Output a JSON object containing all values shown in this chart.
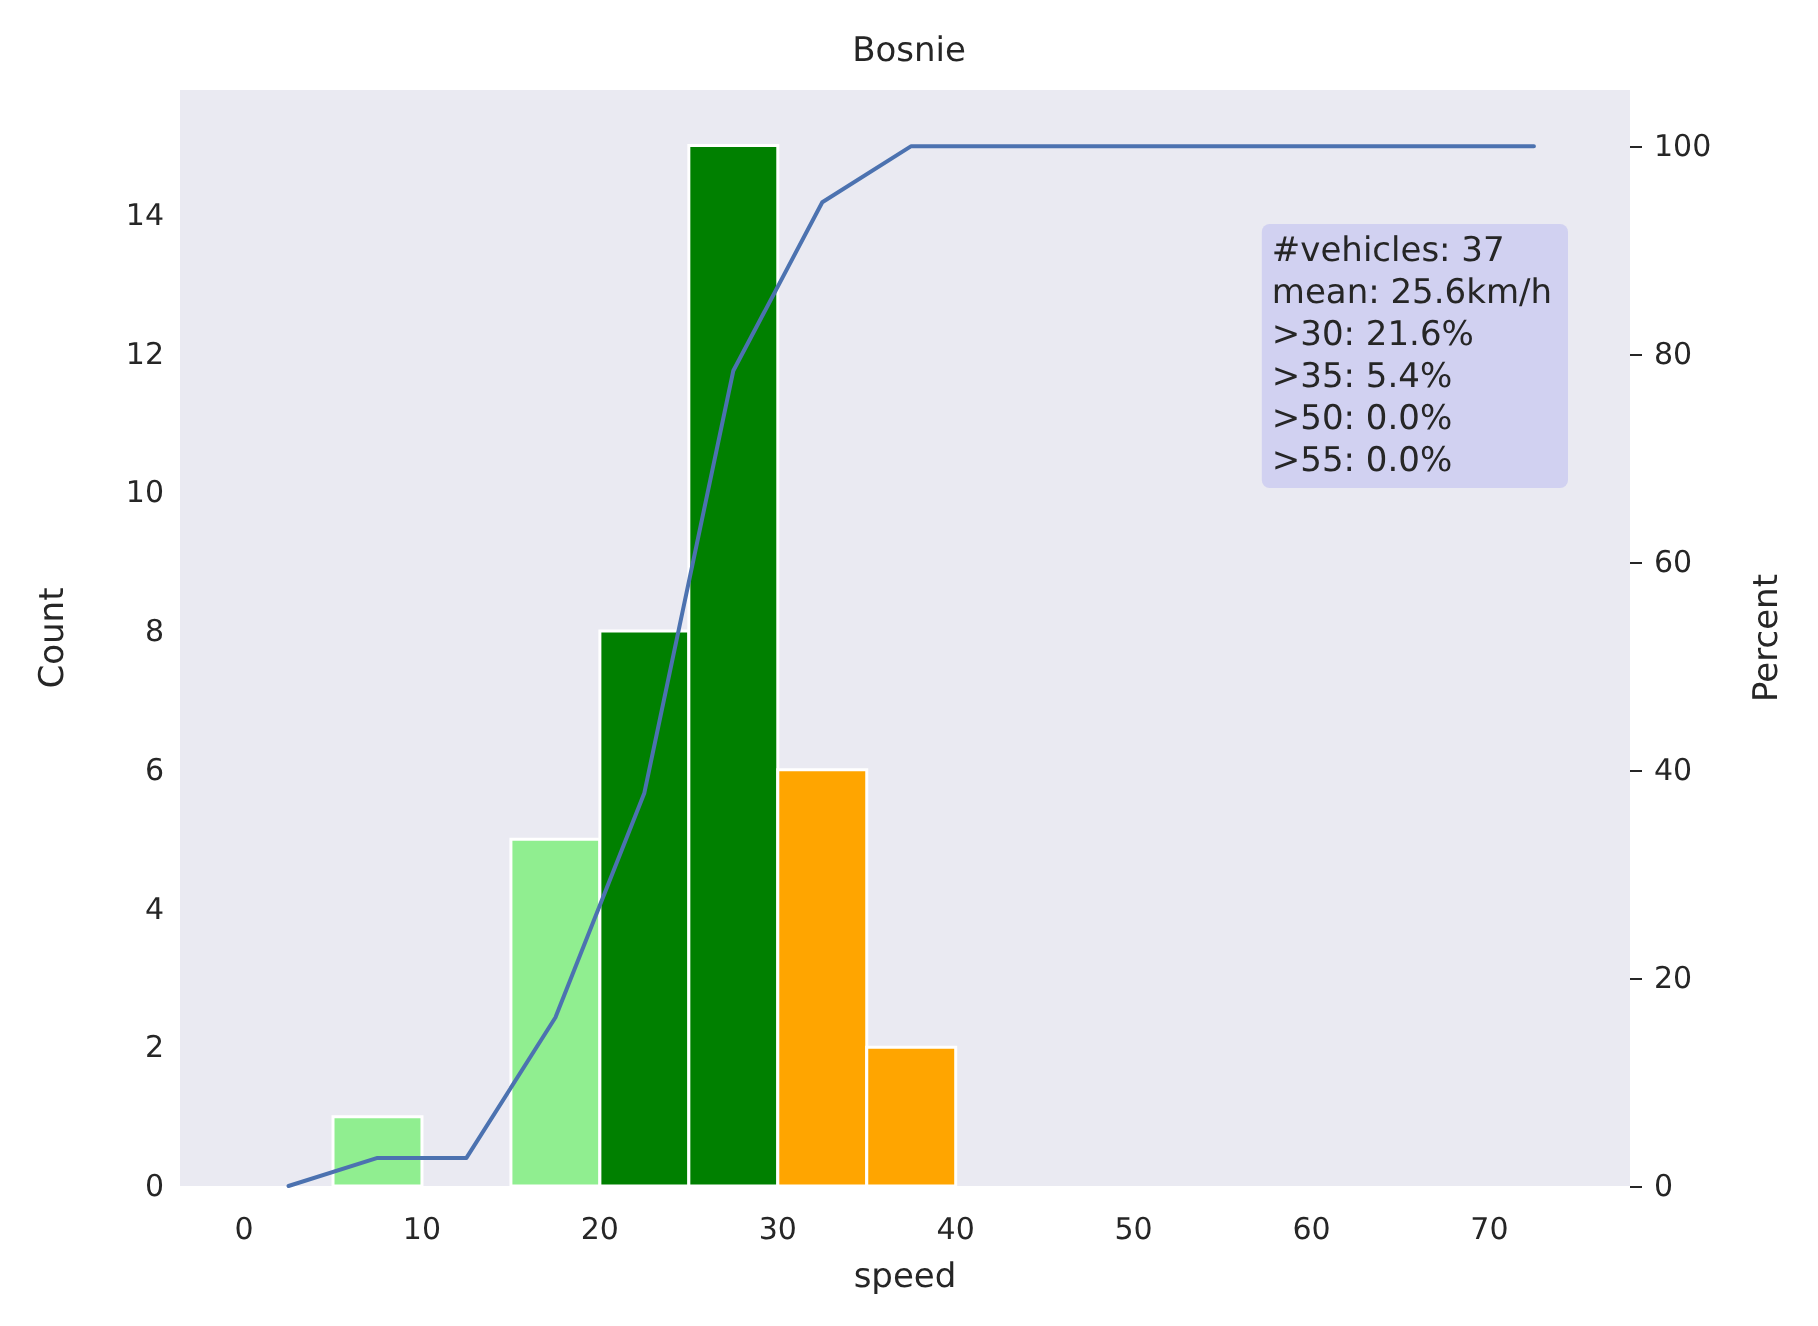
{
  "chart_data": {
    "type": "histogram",
    "title": "Bosnie",
    "xlabel": "speed",
    "ylabel": "Count",
    "y2label": "Percent",
    "annotations": [
      "#vehicles: 37\nmean: 25.6km/h\n>30: 21.6%\n>35: 5.4%\n>50: 0.0%\n>55: 0.0%"
    ],
    "xlim": [
      -3.6,
      77.9
    ],
    "xticks": [
      0,
      10,
      20,
      30,
      40,
      50,
      60,
      70
    ],
    "ylim": [
      0,
      15.8
    ],
    "yticks": [
      0,
      2,
      4,
      6,
      8,
      10,
      12,
      14
    ],
    "y2lim": [
      0,
      105.4
    ],
    "y2ticks": [
      0,
      20,
      40,
      60,
      80,
      100
    ],
    "grid": false,
    "marker": "none",
    "line_style": "solid",
    "series": [
      {
        "bins": [
          5,
          10,
          15,
          20,
          25,
          30,
          35,
          40
        ],
        "values": [
          1,
          0,
          5,
          8,
          15,
          6,
          2
        ],
        "colors": [
          "#90ee90",
          "#90ee90",
          "#90ee90",
          "#008000",
          "#008000",
          "#ffa500",
          "#ffa500"
        ]
      },
      {
        "type": "line",
        "axis": "y2",
        "color": "#4c72b0",
        "x": [
          2.5,
          7.5,
          12.5,
          17.5,
          22.5,
          27.5,
          32.5,
          37.5,
          42.5,
          47.5,
          52.5,
          57.5,
          62.5,
          67.5,
          72.5
        ],
        "values": [
          0,
          2.7,
          2.7,
          16.2,
          37.8,
          78.4,
          94.6,
          100,
          100,
          100,
          100,
          100,
          100,
          100,
          100
        ]
      }
    ]
  }
}
